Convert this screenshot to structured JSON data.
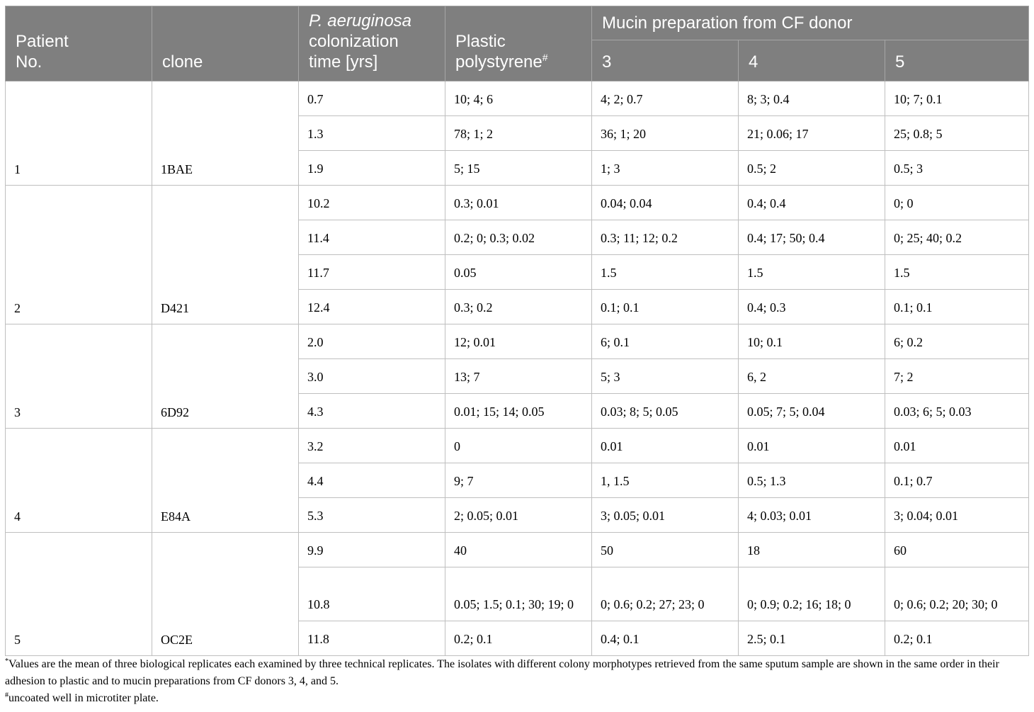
{
  "header": {
    "patient_no": [
      "Patient",
      "No."
    ],
    "clone": "clone",
    "colonization_italic": "P. aeruginosa",
    "colonization_rest": [
      "colonization",
      "time [yrs]"
    ],
    "plastic": [
      "Plastic",
      "polystyrene"
    ],
    "plastic_mark": "#",
    "mucin": "Mucin preparation from CF donor",
    "donors": [
      "3",
      "4",
      "5"
    ]
  },
  "rows": [
    {
      "patient": "1",
      "clone": "1BAE",
      "entries": [
        {
          "time": "0.7",
          "plastic": "10; 4; 6",
          "d3": "4; 2; 0.7",
          "d4": "8; 3; 0.4",
          "d5": "10; 7; 0.1"
        },
        {
          "time": "1.3",
          "plastic": "78; 1; 2",
          "d3": "36; 1; 20",
          "d4": "21; 0.06; 17",
          "d5": "25; 0.8; 5"
        },
        {
          "time": "1.9",
          "plastic": "5; 15",
          "d3": "1; 3",
          "d4": "0.5; 2",
          "d5": "0.5; 3"
        }
      ]
    },
    {
      "patient": "2",
      "clone": "D421",
      "entries": [
        {
          "time": "10.2",
          "plastic": "0.3; 0.01",
          "d3": "0.04; 0.04",
          "d4": "0.4; 0.4",
          "d5": "0; 0"
        },
        {
          "time": "11.4",
          "plastic": "0.2; 0; 0.3; 0.02",
          "d3": "0.3; 11; 12; 0.2",
          "d4": "0.4; 17; 50; 0.4",
          "d5": "0; 25; 40; 0.2"
        },
        {
          "time": "11.7",
          "plastic": "0.05",
          "d3": "1.5",
          "d4": "1.5",
          "d5": "1.5"
        },
        {
          "time": "12.4",
          "plastic": "0.3; 0.2",
          "d3": "0.1; 0.1",
          "d4": "0.4; 0.3",
          "d5": "0.1; 0.1"
        }
      ]
    },
    {
      "patient": "3",
      "clone": "6D92",
      "entries": [
        {
          "time": "2.0",
          "plastic": "12; 0.01",
          "d3": "6; 0.1",
          "d4": "10; 0.1",
          "d5": "6; 0.2"
        },
        {
          "time": "3.0",
          "plastic": "13; 7",
          "d3": "5; 3",
          "d4": "6, 2",
          "d5": "7; 2"
        },
        {
          "time": "4.3",
          "plastic": "0.01; 15; 14; 0.05",
          "d3": "0.03; 8; 5; 0.05",
          "d4": "0.05; 7; 5; 0.04",
          "d5": "0.03; 6; 5; 0.03"
        }
      ]
    },
    {
      "patient": "4",
      "clone": "E84A",
      "entries": [
        {
          "time": "3.2",
          "plastic": "0",
          "d3": "0.01",
          "d4": "0.01",
          "d5": "0.01"
        },
        {
          "time": "4.4",
          "plastic": "9; 7",
          "d3": "1, 1.5",
          "d4": "0.5; 1.3",
          "d5": "0.1; 0.7"
        },
        {
          "time": "5.3",
          "plastic": "2; 0.05; 0.01",
          "d3": "3; 0.05; 0.01",
          "d4": "4; 0.03; 0.01",
          "d5": "3; 0.04; 0.01"
        }
      ]
    },
    {
      "patient": "5",
      "clone": "OC2E",
      "entries": [
        {
          "time": "9.9",
          "plastic": "40",
          "d3": "50",
          "d4": "18",
          "d5": "60"
        },
        {
          "time": "10.8",
          "plastic": "0.05; 1.5; 0.1; 30; 19; 0",
          "d3": "0; 0.6; 0.2; 27; 23; 0",
          "d4": "0; 0.9; 0.2; 16; 18; 0",
          "d5": "0; 0.6; 0.2; 20; 30; 0",
          "tall": true
        },
        {
          "time": "11.8",
          "plastic": "0.2; 0.1",
          "d3": "0.4; 0.1",
          "d4": "2.5; 0.1",
          "d5": "0.2; 0.1"
        }
      ]
    }
  ],
  "footnotes": {
    "star_mark": "*",
    "star_text": "Values are the mean of three biological replicates each examined by three technical replicates. The isolates with different colony morphotypes retrieved from the same sputum sample are shown in the same order in their adhesion to plastic and to mucin preparations from CF donors 3, 4, and 5.",
    "hash_mark": "#",
    "hash_text": "uncoated well in microtiter plate."
  }
}
